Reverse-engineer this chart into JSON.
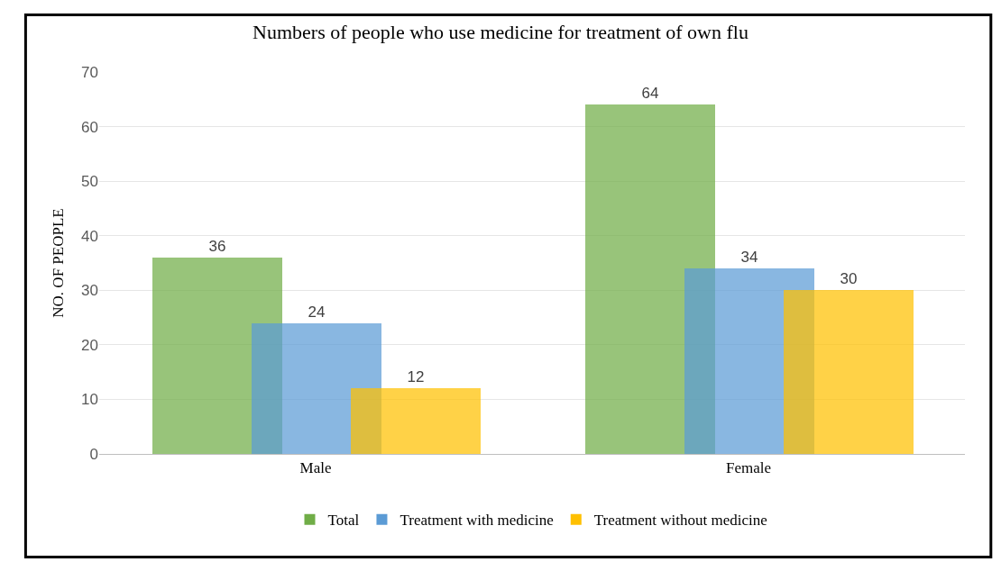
{
  "chart_data": {
    "type": "bar",
    "title": "Numbers of people who use medicine for treatment of own flu",
    "ylabel": "NO. OF PEOPLE",
    "categories": [
      "Male",
      "Female"
    ],
    "series": [
      {
        "name": "Total",
        "color": "#70ad47",
        "values": [
          36,
          64
        ]
      },
      {
        "name": "Treatment with medicine",
        "color": "#5b9bd5",
        "values": [
          24,
          34
        ]
      },
      {
        "name": "Treatment without medicine",
        "color": "#ffc000",
        "values": [
          12,
          30
        ]
      }
    ],
    "ylim": [
      0,
      70
    ],
    "yticks": [
      0,
      10,
      20,
      30,
      40,
      50,
      60,
      70
    ],
    "grid": "y",
    "legend": "bottom",
    "data_labels": true
  }
}
